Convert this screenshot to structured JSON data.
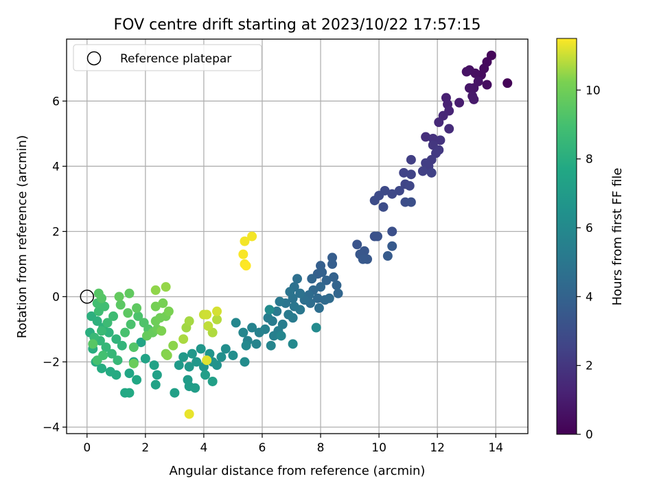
{
  "chart_data": {
    "type": "scatter",
    "title": "FOV centre drift starting at 2023/10/22 17:57:15",
    "xlabel": "Angular distance from reference (arcmin)",
    "ylabel": "Rotation from reference (arcmin)",
    "xlim": [
      -0.7,
      15.1
    ],
    "ylim": [
      -4.2,
      7.9
    ],
    "xticks": [
      0,
      2,
      4,
      6,
      8,
      10,
      12,
      14
    ],
    "yticks": [
      -4,
      -2,
      0,
      2,
      4,
      6
    ],
    "grid": true,
    "legend": {
      "placement": "top-left",
      "entries": [
        "Reference platepar"
      ]
    },
    "reference_point": {
      "x": 0,
      "y": 0
    },
    "colorbar": {
      "label": "Hours from first FF file",
      "colormap": "viridis",
      "range": [
        0,
        11.5
      ],
      "ticks": [
        0,
        2,
        4,
        6,
        8,
        10
      ]
    },
    "points": [
      {
        "x": 14.4,
        "y": 6.55,
        "c": 0.1
      },
      {
        "x": 13.85,
        "y": 7.4,
        "c": 0.2
      },
      {
        "x": 13.7,
        "y": 7.2,
        "c": 0.3
      },
      {
        "x": 13.6,
        "y": 7.0,
        "c": 0.35
      },
      {
        "x": 13.5,
        "y": 6.8,
        "c": 0.4
      },
      {
        "x": 13.7,
        "y": 6.5,
        "c": 0.45
      },
      {
        "x": 13.3,
        "y": 6.85,
        "c": 0.5
      },
      {
        "x": 13.1,
        "y": 6.95,
        "c": 0.55
      },
      {
        "x": 13.0,
        "y": 6.9,
        "c": 0.6
      },
      {
        "x": 13.4,
        "y": 6.6,
        "c": 0.65
      },
      {
        "x": 13.25,
        "y": 6.4,
        "c": 0.7
      },
      {
        "x": 13.1,
        "y": 6.4,
        "c": 0.75
      },
      {
        "x": 13.2,
        "y": 6.15,
        "c": 0.85
      },
      {
        "x": 13.25,
        "y": 6.05,
        "c": 0.9
      },
      {
        "x": 12.75,
        "y": 5.95,
        "c": 1.0
      },
      {
        "x": 12.3,
        "y": 6.1,
        "c": 1.1
      },
      {
        "x": 12.35,
        "y": 5.9,
        "c": 1.2
      },
      {
        "x": 12.4,
        "y": 5.7,
        "c": 1.3
      },
      {
        "x": 12.2,
        "y": 5.55,
        "c": 1.4
      },
      {
        "x": 12.05,
        "y": 5.35,
        "c": 1.5
      },
      {
        "x": 12.4,
        "y": 5.15,
        "c": 1.6
      },
      {
        "x": 11.6,
        "y": 4.9,
        "c": 1.7
      },
      {
        "x": 11.85,
        "y": 4.85,
        "c": 1.8
      },
      {
        "x": 12.1,
        "y": 4.8,
        "c": 1.9
      },
      {
        "x": 11.85,
        "y": 4.65,
        "c": 2.0
      },
      {
        "x": 12.05,
        "y": 4.5,
        "c": 2.1
      },
      {
        "x": 11.95,
        "y": 4.4,
        "c": 2.15
      },
      {
        "x": 11.8,
        "y": 4.2,
        "c": 2.2
      },
      {
        "x": 11.7,
        "y": 4.0,
        "c": 2.25
      },
      {
        "x": 11.6,
        "y": 4.1,
        "c": 2.3
      },
      {
        "x": 11.1,
        "y": 4.2,
        "c": 2.35
      },
      {
        "x": 11.5,
        "y": 3.85,
        "c": 2.4
      },
      {
        "x": 11.8,
        "y": 3.8,
        "c": 2.45
      },
      {
        "x": 10.85,
        "y": 3.8,
        "c": 2.5
      },
      {
        "x": 11.1,
        "y": 3.75,
        "c": 2.55
      },
      {
        "x": 10.9,
        "y": 3.45,
        "c": 2.6
      },
      {
        "x": 11.05,
        "y": 3.4,
        "c": 2.65
      },
      {
        "x": 10.7,
        "y": 3.25,
        "c": 2.7
      },
      {
        "x": 10.45,
        "y": 3.15,
        "c": 2.75
      },
      {
        "x": 10.2,
        "y": 3.25,
        "c": 2.8
      },
      {
        "x": 10.0,
        "y": 3.1,
        "c": 2.85
      },
      {
        "x": 9.85,
        "y": 2.95,
        "c": 2.9
      },
      {
        "x": 10.15,
        "y": 2.75,
        "c": 2.95
      },
      {
        "x": 10.9,
        "y": 2.9,
        "c": 3.0
      },
      {
        "x": 11.1,
        "y": 2.9,
        "c": 3.05
      },
      {
        "x": 10.45,
        "y": 2.0,
        "c": 3.1
      },
      {
        "x": 9.85,
        "y": 1.85,
        "c": 3.15
      },
      {
        "x": 9.95,
        "y": 1.85,
        "c": 3.2
      },
      {
        "x": 9.25,
        "y": 1.6,
        "c": 3.3
      },
      {
        "x": 9.5,
        "y": 1.4,
        "c": 3.35
      },
      {
        "x": 9.35,
        "y": 1.3,
        "c": 3.4
      },
      {
        "x": 9.6,
        "y": 1.15,
        "c": 3.45
      },
      {
        "x": 9.45,
        "y": 1.15,
        "c": 3.5
      },
      {
        "x": 10.45,
        "y": 1.55,
        "c": 3.55
      },
      {
        "x": 10.3,
        "y": 1.25,
        "c": 3.6
      },
      {
        "x": 8.4,
        "y": 1.2,
        "c": 3.7
      },
      {
        "x": 8.4,
        "y": 1.0,
        "c": 3.75
      },
      {
        "x": 8.0,
        "y": 0.95,
        "c": 3.8
      },
      {
        "x": 7.9,
        "y": 0.7,
        "c": 3.85
      },
      {
        "x": 8.05,
        "y": 0.75,
        "c": 3.9
      },
      {
        "x": 8.45,
        "y": 0.6,
        "c": 3.95
      },
      {
        "x": 8.2,
        "y": 0.5,
        "c": 4.0
      },
      {
        "x": 8.55,
        "y": 0.35,
        "c": 4.05
      },
      {
        "x": 7.7,
        "y": 0.55,
        "c": 4.1
      },
      {
        "x": 8.6,
        "y": 0.1,
        "c": 4.15
      },
      {
        "x": 8.0,
        "y": 0.3,
        "c": 4.2
      },
      {
        "x": 7.75,
        "y": 0.2,
        "c": 4.25
      },
      {
        "x": 7.9,
        "y": -0.05,
        "c": 4.3
      },
      {
        "x": 8.15,
        "y": -0.1,
        "c": 4.35
      },
      {
        "x": 8.3,
        "y": -0.05,
        "c": 4.4
      },
      {
        "x": 7.6,
        "y": 0.05,
        "c": 4.45
      },
      {
        "x": 7.65,
        "y": -0.2,
        "c": 4.5
      },
      {
        "x": 7.95,
        "y": -0.35,
        "c": 4.55
      },
      {
        "x": 7.45,
        "y": -0.1,
        "c": 4.6
      },
      {
        "x": 7.2,
        "y": 0.55,
        "c": 4.65
      },
      {
        "x": 7.1,
        "y": 0.3,
        "c": 4.7
      },
      {
        "x": 7.3,
        "y": 0.1,
        "c": 4.75
      },
      {
        "x": 7.05,
        "y": -0.05,
        "c": 4.8
      },
      {
        "x": 6.95,
        "y": 0.15,
        "c": 4.85
      },
      {
        "x": 6.8,
        "y": -0.2,
        "c": 4.9
      },
      {
        "x": 7.1,
        "y": -0.3,
        "c": 4.95
      },
      {
        "x": 7.3,
        "y": -0.4,
        "c": 5.0
      },
      {
        "x": 6.6,
        "y": -0.15,
        "c": 5.05
      },
      {
        "x": 6.5,
        "y": -0.45,
        "c": 5.1
      },
      {
        "x": 6.9,
        "y": -0.55,
        "c": 5.15
      },
      {
        "x": 7.05,
        "y": -0.65,
        "c": 5.2
      },
      {
        "x": 6.35,
        "y": -0.75,
        "c": 5.25
      },
      {
        "x": 6.2,
        "y": -0.65,
        "c": 5.3
      },
      {
        "x": 6.7,
        "y": -0.85,
        "c": 5.35
      },
      {
        "x": 6.55,
        "y": -1.05,
        "c": 5.4
      },
      {
        "x": 6.4,
        "y": -1.2,
        "c": 5.45
      },
      {
        "x": 6.1,
        "y": -1.0,
        "c": 5.5
      },
      {
        "x": 5.9,
        "y": -1.1,
        "c": 5.55
      },
      {
        "x": 5.65,
        "y": -0.95,
        "c": 5.6
      },
      {
        "x": 5.5,
        "y": -1.35,
        "c": 5.65
      },
      {
        "x": 5.8,
        "y": -1.45,
        "c": 5.7
      },
      {
        "x": 6.3,
        "y": -1.5,
        "c": 5.75
      },
      {
        "x": 6.65,
        "y": -1.2,
        "c": 5.8
      },
      {
        "x": 5.35,
        "y": -1.1,
        "c": 5.85
      },
      {
        "x": 5.1,
        "y": -0.8,
        "c": 5.9
      },
      {
        "x": 5.45,
        "y": -1.5,
        "c": 5.95
      },
      {
        "x": 7.05,
        "y": -1.45,
        "c": 6.0
      },
      {
        "x": 7.85,
        "y": -0.95,
        "c": 6.05
      },
      {
        "x": 6.25,
        "y": -0.4,
        "c": 6.1
      },
      {
        "x": 5.4,
        "y": -2.0,
        "c": 6.15
      },
      {
        "x": 5.0,
        "y": -1.8,
        "c": 6.25
      },
      {
        "x": 4.75,
        "y": -1.6,
        "c": 6.3
      },
      {
        "x": 4.6,
        "y": -1.85,
        "c": 6.4
      },
      {
        "x": 4.45,
        "y": -2.1,
        "c": 6.5
      },
      {
        "x": 4.3,
        "y": -2.0,
        "c": 6.55
      },
      {
        "x": 4.2,
        "y": -1.75,
        "c": 6.6
      },
      {
        "x": 4.0,
        "y": -2.15,
        "c": 6.65
      },
      {
        "x": 3.9,
        "y": -1.6,
        "c": 6.7
      },
      {
        "x": 3.75,
        "y": -2.0,
        "c": 6.75
      },
      {
        "x": 3.6,
        "y": -1.75,
        "c": 6.8
      },
      {
        "x": 3.5,
        "y": -2.15,
        "c": 6.85
      },
      {
        "x": 3.3,
        "y": -1.85,
        "c": 6.9
      },
      {
        "x": 3.15,
        "y": -2.1,
        "c": 6.95
      },
      {
        "x": 3.45,
        "y": -2.55,
        "c": 7.0
      },
      {
        "x": 3.5,
        "y": -2.75,
        "c": 7.05
      },
      {
        "x": 3.7,
        "y": -2.8,
        "c": 7.1
      },
      {
        "x": 4.05,
        "y": -2.4,
        "c": 7.15
      },
      {
        "x": 4.3,
        "y": -2.6,
        "c": 7.2
      },
      {
        "x": 3.0,
        "y": -2.95,
        "c": 7.25
      },
      {
        "x": 2.4,
        "y": -2.4,
        "c": 7.3
      },
      {
        "x": 2.35,
        "y": -2.7,
        "c": 7.35
      },
      {
        "x": 2.3,
        "y": -2.1,
        "c": 7.4
      },
      {
        "x": 2.0,
        "y": -1.9,
        "c": 7.45
      },
      {
        "x": 1.85,
        "y": -1.4,
        "c": 7.5
      },
      {
        "x": 1.6,
        "y": -2.0,
        "c": 7.55
      },
      {
        "x": 1.45,
        "y": -2.35,
        "c": 7.6
      },
      {
        "x": 1.7,
        "y": -2.55,
        "c": 7.65
      },
      {
        "x": 1.3,
        "y": -2.95,
        "c": 7.7
      },
      {
        "x": 1.45,
        "y": -2.95,
        "c": 7.75
      },
      {
        "x": 1.0,
        "y": -2.4,
        "c": 7.8
      },
      {
        "x": 0.8,
        "y": -2.3,
        "c": 7.85
      },
      {
        "x": 0.5,
        "y": -2.2,
        "c": 7.9
      },
      {
        "x": 0.3,
        "y": -2.0,
        "c": 7.95
      },
      {
        "x": 0.2,
        "y": -1.6,
        "c": 8.0
      },
      {
        "x": 0.1,
        "y": -1.1,
        "c": 8.05
      },
      {
        "x": 0.15,
        "y": -0.6,
        "c": 8.1
      },
      {
        "x": 0.35,
        "y": -0.75,
        "c": 8.15
      },
      {
        "x": 0.55,
        "y": -0.95,
        "c": 8.2
      },
      {
        "x": 0.75,
        "y": -1.1,
        "c": 8.25
      },
      {
        "x": 1.0,
        "y": -1.3,
        "c": 8.3
      },
      {
        "x": 1.2,
        "y": -1.5,
        "c": 8.35
      },
      {
        "x": 0.45,
        "y": -1.35,
        "c": 8.4
      },
      {
        "x": 0.65,
        "y": -1.55,
        "c": 8.45
      },
      {
        "x": 0.85,
        "y": -1.75,
        "c": 8.5
      },
      {
        "x": 1.05,
        "y": -1.95,
        "c": 8.55
      },
      {
        "x": 0.25,
        "y": -1.25,
        "c": 8.6
      },
      {
        "x": 0.5,
        "y": -1.05,
        "c": 8.65
      },
      {
        "x": 0.7,
        "y": -0.8,
        "c": 8.7
      },
      {
        "x": 0.9,
        "y": -0.6,
        "c": 8.75
      },
      {
        "x": 0.4,
        "y": -0.45,
        "c": 8.8
      },
      {
        "x": 0.6,
        "y": -0.3,
        "c": 8.85
      },
      {
        "x": 0.35,
        "y": -0.2,
        "c": 8.9
      },
      {
        "x": 0.55,
        "y": -1.8,
        "c": 8.95
      },
      {
        "x": 0.35,
        "y": -1.95,
        "c": 9.0
      },
      {
        "x": 1.3,
        "y": -1.1,
        "c": 9.05
      },
      {
        "x": 1.5,
        "y": -0.85,
        "c": 9.1
      },
      {
        "x": 1.75,
        "y": -0.6,
        "c": 9.15
      },
      {
        "x": 1.95,
        "y": -0.8,
        "c": 9.2
      },
      {
        "x": 2.1,
        "y": -1.0,
        "c": 9.25
      },
      {
        "x": 1.6,
        "y": -1.55,
        "c": 9.3
      },
      {
        "x": 0.5,
        "y": -0.05,
        "c": 9.35
      },
      {
        "x": 0.4,
        "y": 0.1,
        "c": 9.4
      },
      {
        "x": 0.2,
        "y": -1.45,
        "c": 9.45
      },
      {
        "x": 1.15,
        "y": -0.25,
        "c": 9.5
      },
      {
        "x": 1.4,
        "y": -0.5,
        "c": 9.55
      },
      {
        "x": 1.7,
        "y": -0.35,
        "c": 9.6
      },
      {
        "x": 1.45,
        "y": 0.1,
        "c": 9.65
      },
      {
        "x": 1.1,
        "y": 0.0,
        "c": 9.7
      },
      {
        "x": 2.05,
        "y": -1.2,
        "c": 9.75
      },
      {
        "x": 2.25,
        "y": -1.1,
        "c": 9.8
      },
      {
        "x": 1.6,
        "y": -2.05,
        "c": 9.85
      },
      {
        "x": 2.4,
        "y": -1.0,
        "c": 9.9
      },
      {
        "x": 2.35,
        "y": -0.75,
        "c": 9.95
      },
      {
        "x": 2.5,
        "y": -0.65,
        "c": 10.0
      },
      {
        "x": 2.7,
        "y": -0.6,
        "c": 10.05
      },
      {
        "x": 2.35,
        "y": -0.3,
        "c": 10.1
      },
      {
        "x": 2.6,
        "y": -0.2,
        "c": 10.15
      },
      {
        "x": 2.8,
        "y": -0.45,
        "c": 10.2
      },
      {
        "x": 2.55,
        "y": -1.05,
        "c": 10.25
      },
      {
        "x": 2.7,
        "y": -1.75,
        "c": 10.3
      },
      {
        "x": 2.75,
        "y": -1.8,
        "c": 10.35
      },
      {
        "x": 2.95,
        "y": -1.5,
        "c": 10.4
      },
      {
        "x": 2.35,
        "y": 0.2,
        "c": 10.45
      },
      {
        "x": 2.7,
        "y": 0.3,
        "c": 10.5
      },
      {
        "x": 3.4,
        "y": -0.95,
        "c": 10.6
      },
      {
        "x": 3.5,
        "y": -0.75,
        "c": 10.65
      },
      {
        "x": 3.3,
        "y": -1.3,
        "c": 10.7
      },
      {
        "x": 4.3,
        "y": -1.1,
        "c": 10.75
      },
      {
        "x": 4.45,
        "y": -0.7,
        "c": 10.8
      },
      {
        "x": 4.15,
        "y": -0.9,
        "c": 10.9
      },
      {
        "x": 4.0,
        "y": -0.55,
        "c": 11.0
      },
      {
        "x": 4.1,
        "y": -0.55,
        "c": 11.05
      },
      {
        "x": 4.45,
        "y": -0.45,
        "c": 11.1
      },
      {
        "x": 4.1,
        "y": -1.95,
        "c": 11.2
      },
      {
        "x": 3.5,
        "y": -3.6,
        "c": 11.3
      },
      {
        "x": 5.4,
        "y": 1.7,
        "c": 11.4
      },
      {
        "x": 5.65,
        "y": 1.85,
        "c": 11.4
      },
      {
        "x": 5.35,
        "y": 1.3,
        "c": 11.45
      },
      {
        "x": 5.4,
        "y": 1.0,
        "c": 11.45
      },
      {
        "x": 5.45,
        "y": 0.95,
        "c": 11.5
      }
    ]
  }
}
